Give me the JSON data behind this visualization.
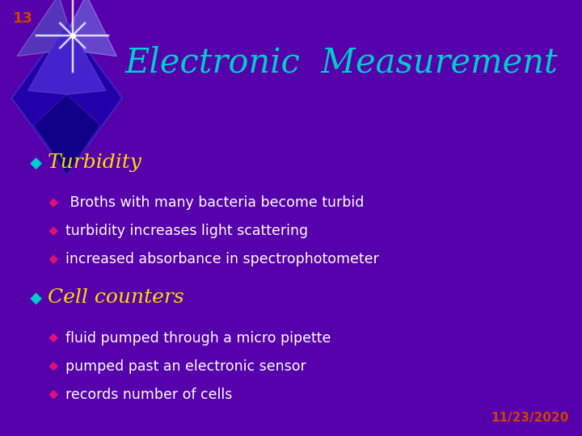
{
  "background_color": "#5500aa",
  "slide_number": "13",
  "slide_number_color": "#cc4400",
  "title": "Electronic  Measurement",
  "title_color": "#00cccc",
  "title_fontsize": 30,
  "bullet1_text": "Turbidity",
  "bullet1_color": "#ffdd00",
  "bullet1_diamond_color": "#00cccc",
  "sub_bullets_1": [
    " Broths with many bacteria become turbid",
    "turbidity increases light scattering",
    "increased absorbance in spectrophotometer"
  ],
  "sub_bullet1_color": "#ffffff",
  "sub_diamond1_color": "#dd1177",
  "bullet2_text": "Cell counters",
  "bullet2_color": "#ffdd00",
  "bullet2_diamond_color": "#00cccc",
  "sub_bullets_2": [
    "fluid pumped through a micro pipette",
    "pumped past an electronic sensor",
    "records number of cells"
  ],
  "sub_bullet2_color": "#ffffff",
  "sub_diamond2_color": "#dd1177",
  "date_text": "11/23/2020",
  "date_color": "#cc4400"
}
